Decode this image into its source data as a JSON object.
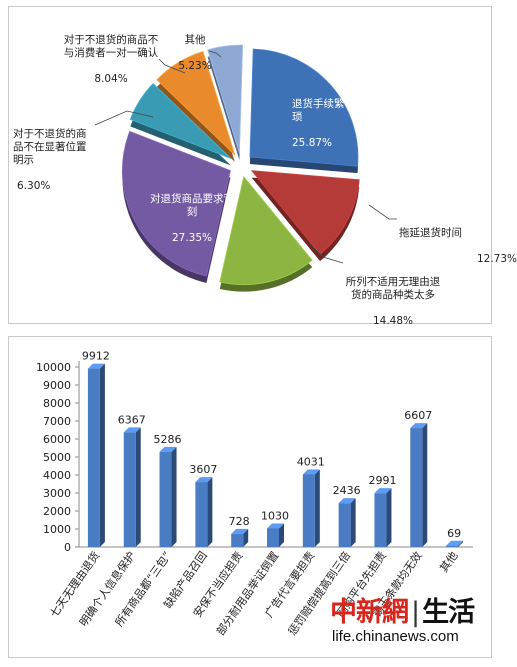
{
  "chart_data": [
    {
      "type": "pie",
      "slices": [
        {
          "label": "退货手续繁琐",
          "value": 25.87,
          "display": "25.87%",
          "color": "#3f71b7"
        },
        {
          "label": "拖延退货时间",
          "value": 12.73,
          "display": "12.73%",
          "color": "#b53b38"
        },
        {
          "label": "所列不适用无理由退货的商品种类太多",
          "value": 14.48,
          "display": "14.48%",
          "color": "#8db542"
        },
        {
          "label": "对退货商品要求苛刻",
          "value": 27.35,
          "display": "27.35%",
          "color": "#7459a3"
        },
        {
          "label": "对于不退货的商品不在显著位置明示",
          "value": 6.3,
          "display": "6.30%",
          "color": "#3a9bb4"
        },
        {
          "label": "对于不退货的商品不与消费者一对一确认",
          "value": 8.04,
          "display": "8.04%",
          "color": "#e98a2c"
        },
        {
          "label": "其他",
          "value": 5.23,
          "display": "5.23%",
          "color": "#8ea8d4"
        }
      ]
    },
    {
      "type": "bar",
      "categories": [
        "七天无理由退货",
        "明确个人信息保护",
        "所有商品都“三包”",
        "缺陷产品召回",
        "安保不当应担责",
        "部分耐用品举证倒置",
        "广告代言要担责",
        "惩罚赔偿提高到三倍",
        "网购平台先担责",
        "霸王条款均无效",
        "其他"
      ],
      "values": [
        9912,
        6367,
        5286,
        3607,
        728,
        1030,
        4031,
        2436,
        2991,
        6607,
        69
      ],
      "value_labels": [
        "9912",
        "6367",
        "5286",
        "3607",
        "728",
        "1030",
        "4031",
        "2436",
        "2991",
        "6607",
        "69"
      ],
      "ylim": [
        0,
        10000
      ],
      "yticks": [
        "0",
        "1000",
        "2000",
        "3000",
        "4000",
        "5000",
        "6000",
        "7000",
        "8000",
        "9000",
        "10000"
      ],
      "grid": false,
      "color": "#4a7cc4"
    }
  ],
  "watermark": {
    "brand_red": "中新網",
    "separator": "|",
    "brand_black": "生活",
    "url": "life.chinanews.com"
  }
}
